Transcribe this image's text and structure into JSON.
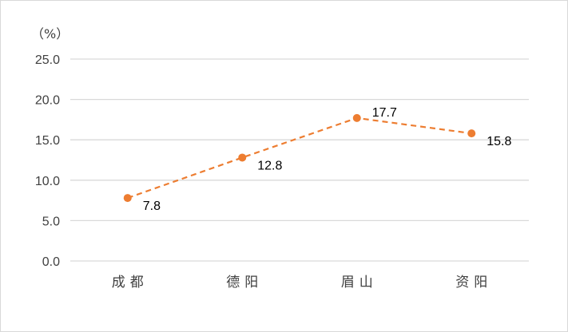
{
  "chart_data": {
    "type": "line",
    "unit_label": "（%）",
    "categories": [
      "成都",
      "德阳",
      "眉山",
      "资阳"
    ],
    "values": [
      7.8,
      12.8,
      17.7,
      15.8
    ],
    "data_labels": [
      "7.8",
      "12.8",
      "17.7",
      "15.8"
    ],
    "ylim": [
      0,
      25
    ],
    "yticks": [
      "0.0",
      "5.0",
      "10.0",
      "15.0",
      "20.0",
      "25.0"
    ],
    "grid": true,
    "line_style": "dashed",
    "colors": {
      "series": "#ED7D31",
      "grid": "#D9D9D9",
      "text": "#404040"
    }
  }
}
